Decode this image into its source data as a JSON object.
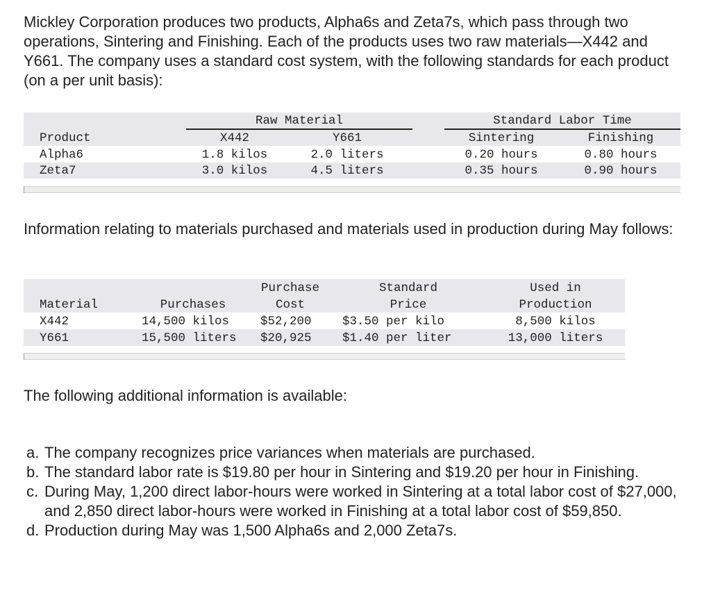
{
  "intro": "Mickley Corporation produces two products, Alpha6s and Zeta7s, which pass through two operations, Sintering and Finishing. Each of the products uses two raw materials—X442 and Y661. The company uses a standard cost system, with the following standards for each product (on a per unit basis):",
  "table1": {
    "group_raw": "Raw Material",
    "group_labor": "Standard Labor Time",
    "headers": [
      "Product",
      "X442",
      "Y661",
      "Sintering",
      "Finishing"
    ],
    "rows": [
      [
        "Alpha6",
        "1.8 kilos",
        "2.0 liters",
        "0.20 hours",
        "0.80 hours"
      ],
      [
        "Zeta7",
        "3.0 kilos",
        "4.5 liters",
        "0.35 hours",
        "0.90 hours"
      ]
    ]
  },
  "info_text": "Information relating to materials purchased and materials used in production during May follows:",
  "table2": {
    "headers_top": [
      "",
      "",
      "Purchase",
      "Standard",
      "Used in"
    ],
    "headers_bottom": [
      "Material",
      "Purchases",
      "Cost",
      "Price",
      "Production"
    ],
    "rows": [
      [
        "X442",
        "14,500 kilos",
        "$52,200",
        "$3.50 per kilo",
        "8,500 kilos"
      ],
      [
        "Y661",
        "15,500 liters",
        "$20,925",
        "$1.40 per liter",
        "13,000 liters"
      ]
    ]
  },
  "additional_text": "The following additional information is available:",
  "list": [
    {
      "label": "a.",
      "text": "The company recognizes price variances when materials are purchased."
    },
    {
      "label": "b.",
      "text": "The standard labor rate is $19.80 per hour in Sintering and $19.20 per hour in Finishing."
    },
    {
      "label": "c.",
      "text": "During May, 1,200 direct labor-hours were worked in Sintering at a total labor cost of $27,000, and 2,850 direct labor-hours were worked in Finishing at a total labor cost of $59,850."
    },
    {
      "label": "d.",
      "text": "Production during May was 1,500 Alpha6s and 2,000 Zeta7s."
    }
  ]
}
